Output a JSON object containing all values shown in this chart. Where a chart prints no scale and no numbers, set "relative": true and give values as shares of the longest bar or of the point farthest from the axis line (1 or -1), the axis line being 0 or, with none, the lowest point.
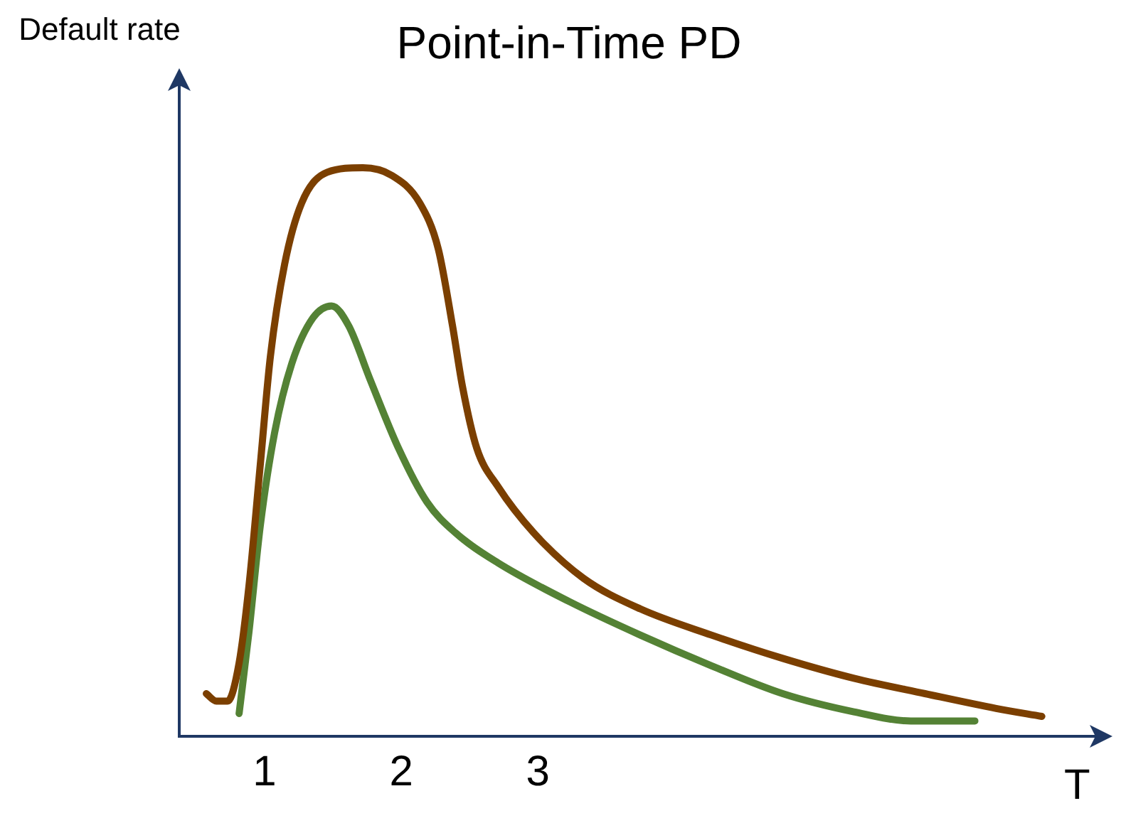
{
  "chart_data": {
    "type": "line",
    "title": "Point-in-Time PD",
    "xlabel": "T",
    "ylabel": "Default rate",
    "relative": true,
    "xlim": [
      0.375,
      7.08
    ],
    "xticks": [
      1,
      2,
      3
    ],
    "grid": false,
    "legend": false,
    "marker": "none",
    "line_style": "solid",
    "series": [
      {
        "color": "#7b3f00",
        "x": [
          0.573,
          0.646,
          0.729,
          0.813,
          0.885,
          0.969,
          1.042,
          1.146,
          1.271,
          1.458,
          1.719,
          1.927,
          2.135,
          2.271,
          2.375,
          2.448,
          2.552,
          2.708,
          2.969,
          3.333,
          3.75,
          4.271,
          4.792,
          5.313,
          5.833,
          6.354,
          6.688
        ],
        "values": [
          0.075,
          0.062,
          0.062,
          0.129,
          0.264,
          0.48,
          0.668,
          0.83,
          0.938,
          0.992,
          1.0,
          0.987,
          0.938,
          0.857,
          0.722,
          0.615,
          0.507,
          0.439,
          0.358,
          0.278,
          0.224,
          0.178,
          0.137,
          0.102,
          0.075,
          0.049,
          0.035
        ]
      },
      {
        "color": "#548235",
        "x": [
          0.813,
          0.885,
          0.969,
          1.073,
          1.198,
          1.354,
          1.49,
          1.615,
          1.771,
          1.979,
          2.188,
          2.396,
          2.708,
          3.229,
          3.75,
          4.271,
          4.792,
          5.313,
          5.729,
          6.198
        ],
        "values": [
          0.04,
          0.183,
          0.372,
          0.534,
          0.655,
          0.736,
          0.757,
          0.722,
          0.628,
          0.507,
          0.412,
          0.358,
          0.305,
          0.237,
          0.178,
          0.124,
          0.075,
          0.043,
          0.027,
          0.027
        ]
      }
    ]
  }
}
